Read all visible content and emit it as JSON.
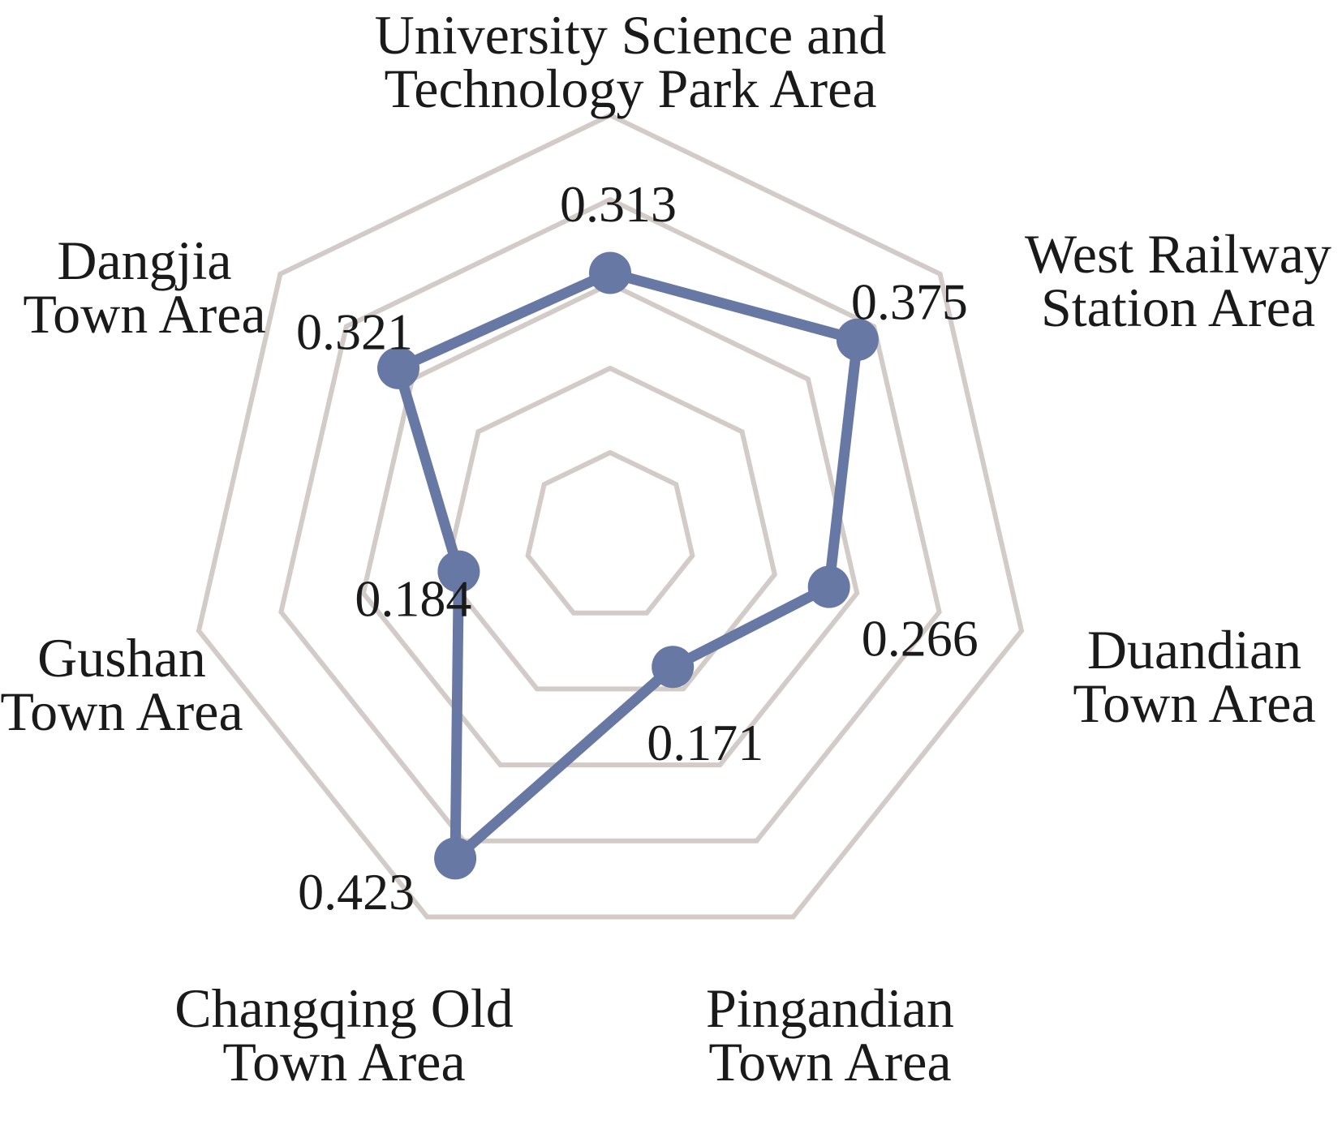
{
  "chart_data": {
    "type": "radar",
    "title": "",
    "categories": [
      [
        "University Science and",
        "Technology Park Area"
      ],
      [
        "West Railway",
        "Station Area"
      ],
      [
        "Duandian",
        "Town Area"
      ],
      [
        "Pingandian",
        "Town Area"
      ],
      [
        "Changqing Old",
        "Town Area"
      ],
      [
        "Gushan",
        "Town Area"
      ],
      [
        "Dangjia",
        "Town Area"
      ]
    ],
    "series": [
      {
        "values": [
          0.313,
          0.375,
          0.266,
          0.171,
          0.423,
          0.184,
          0.321
        ],
        "value_labels": [
          "0.313",
          "0.375",
          "0.266",
          "0.171",
          "0.423",
          "0.184",
          "0.321"
        ]
      }
    ],
    "rmin": 0,
    "rmax": 0.5,
    "grid_levels": [
      0.1,
      0.2,
      0.3,
      0.4,
      0.5
    ],
    "grid": true,
    "legend": "none",
    "colors": {
      "series": "#6678a3",
      "grid": "#d3cbc8",
      "text": "#1a1a1a"
    }
  }
}
